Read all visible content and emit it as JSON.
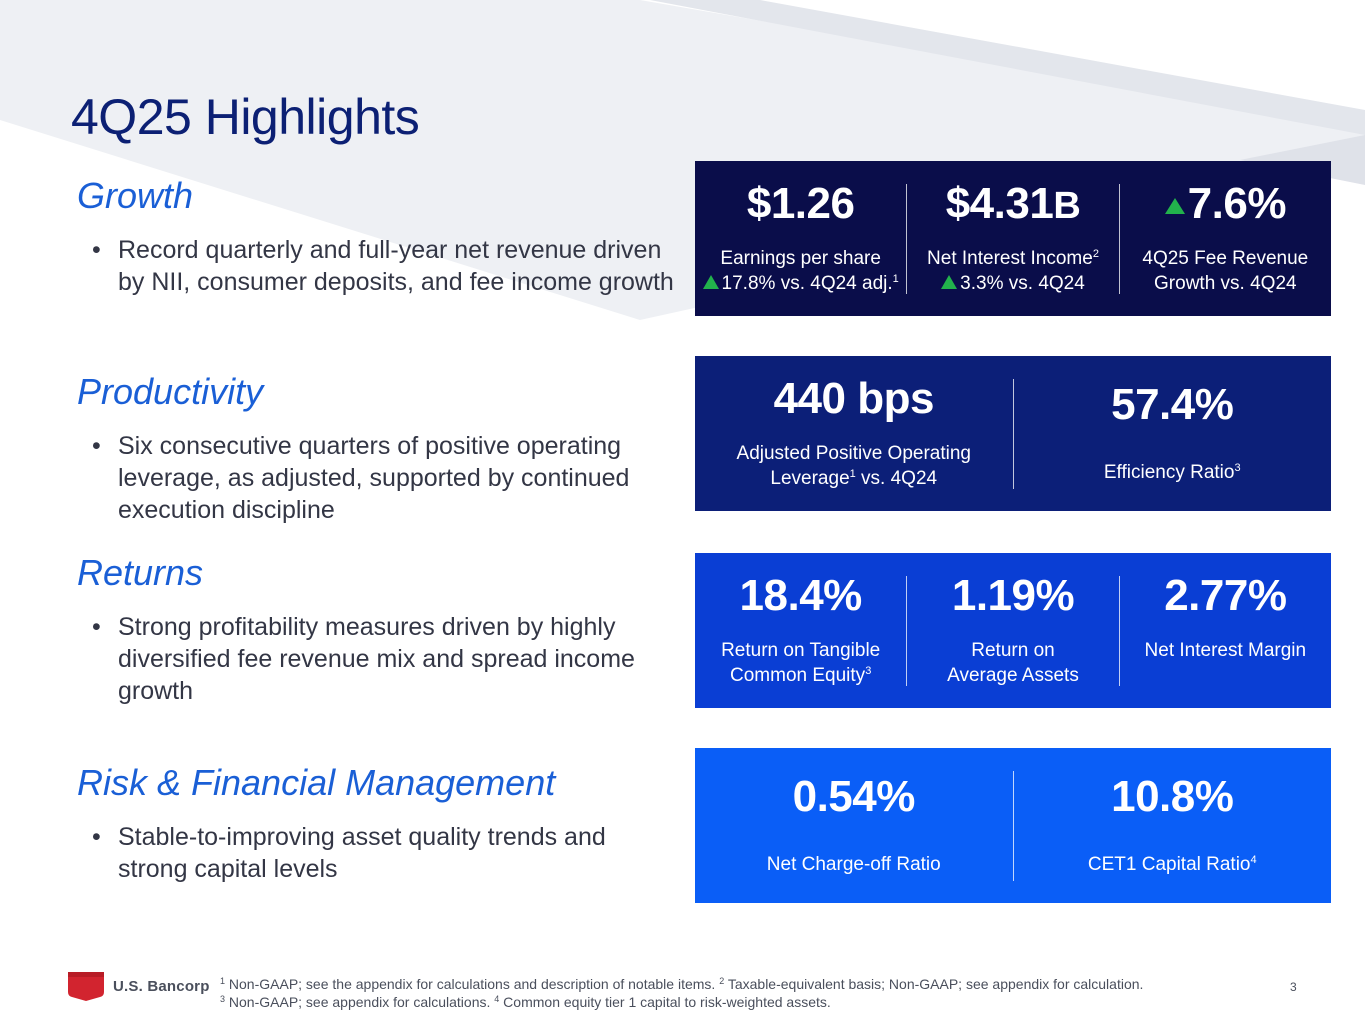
{
  "title": "4Q25 Highlights",
  "colors": {
    "title": "#0c2074",
    "heading": "#1a5fd6",
    "box1": "#0a0d4a",
    "box2": "#0c1f78",
    "box3": "#0a3ed4",
    "box4": "#0a5ef7",
    "up_arrow": "#22b24c",
    "brand_red": "#d2242f"
  },
  "sections": [
    {
      "heading": "Growth",
      "bullet": "Record quarterly and full-year net revenue driven by NII, consumer deposits, and fee income growth"
    },
    {
      "heading": "Productivity",
      "bullet": "Six consecutive quarters of positive operating leverage, as adjusted, supported by continued execution discipline"
    },
    {
      "heading": "Returns",
      "bullet": "Strong profitability measures driven by highly diversified fee revenue mix and spread income growth"
    },
    {
      "heading": "Risk & Financial Management",
      "bullet": "Stable-to-improving asset quality trends and strong capital levels"
    }
  ],
  "growth_kpis": {
    "eps": {
      "value": "$1.26",
      "label": "Earnings per share",
      "sub": "17.8% vs. 4Q24 adj.",
      "sub_note": "1",
      "icon": "up-triangle-icon"
    },
    "nii": {
      "value": "$4.31",
      "unit": "B",
      "label": "Net Interest Income",
      "label_note": "2",
      "sub": "3.3% vs. 4Q24",
      "icon": "up-triangle-icon"
    },
    "fee": {
      "value": "7.6%",
      "label_line1": "4Q25 Fee Revenue",
      "label_line2": "Growth vs. 4Q24",
      "icon": "up-triangle-icon"
    }
  },
  "productivity_kpis": {
    "leverage": {
      "value": "440 bps",
      "label_line1": "Adjusted Positive Operating",
      "label_line2a": "Leverage",
      "label_note": "1",
      "label_line2b": " vs. 4Q24"
    },
    "efficiency": {
      "value": "57.4%",
      "label": "Efficiency Ratio",
      "label_note": "3"
    }
  },
  "returns_kpis": {
    "rotce": {
      "value": "18.4%",
      "label_line1": "Return on Tangible",
      "label_line2": "Common Equity",
      "label_note": "3"
    },
    "roaa": {
      "value": "1.19%",
      "label_line1": "Return on",
      "label_line2": "Average Assets"
    },
    "nim": {
      "value": "2.77%",
      "label": "Net Interest Margin"
    }
  },
  "risk_kpis": {
    "nco": {
      "value": "0.54%",
      "label": "Net Charge-off Ratio"
    },
    "cet1": {
      "value": "10.8%",
      "label": "CET1 Capital Ratio",
      "label_note": "4"
    }
  },
  "footer": {
    "logo_text": "U.S. Bancorp",
    "logo_icon": "shield-logo-icon",
    "note1_marker": "1",
    "note1": " Non-GAAP; see the appendix for calculations and description of notable items. ",
    "note2_marker": "2",
    "note2": " Taxable-equivalent basis; Non-GAAP; see appendix for calculation.",
    "note3_marker": "3",
    "note3": " Non-GAAP; see appendix for calculations. ",
    "note4_marker": "4",
    "note4": " Common equity tier 1 capital to risk-weighted assets.",
    "page_number": "3"
  }
}
